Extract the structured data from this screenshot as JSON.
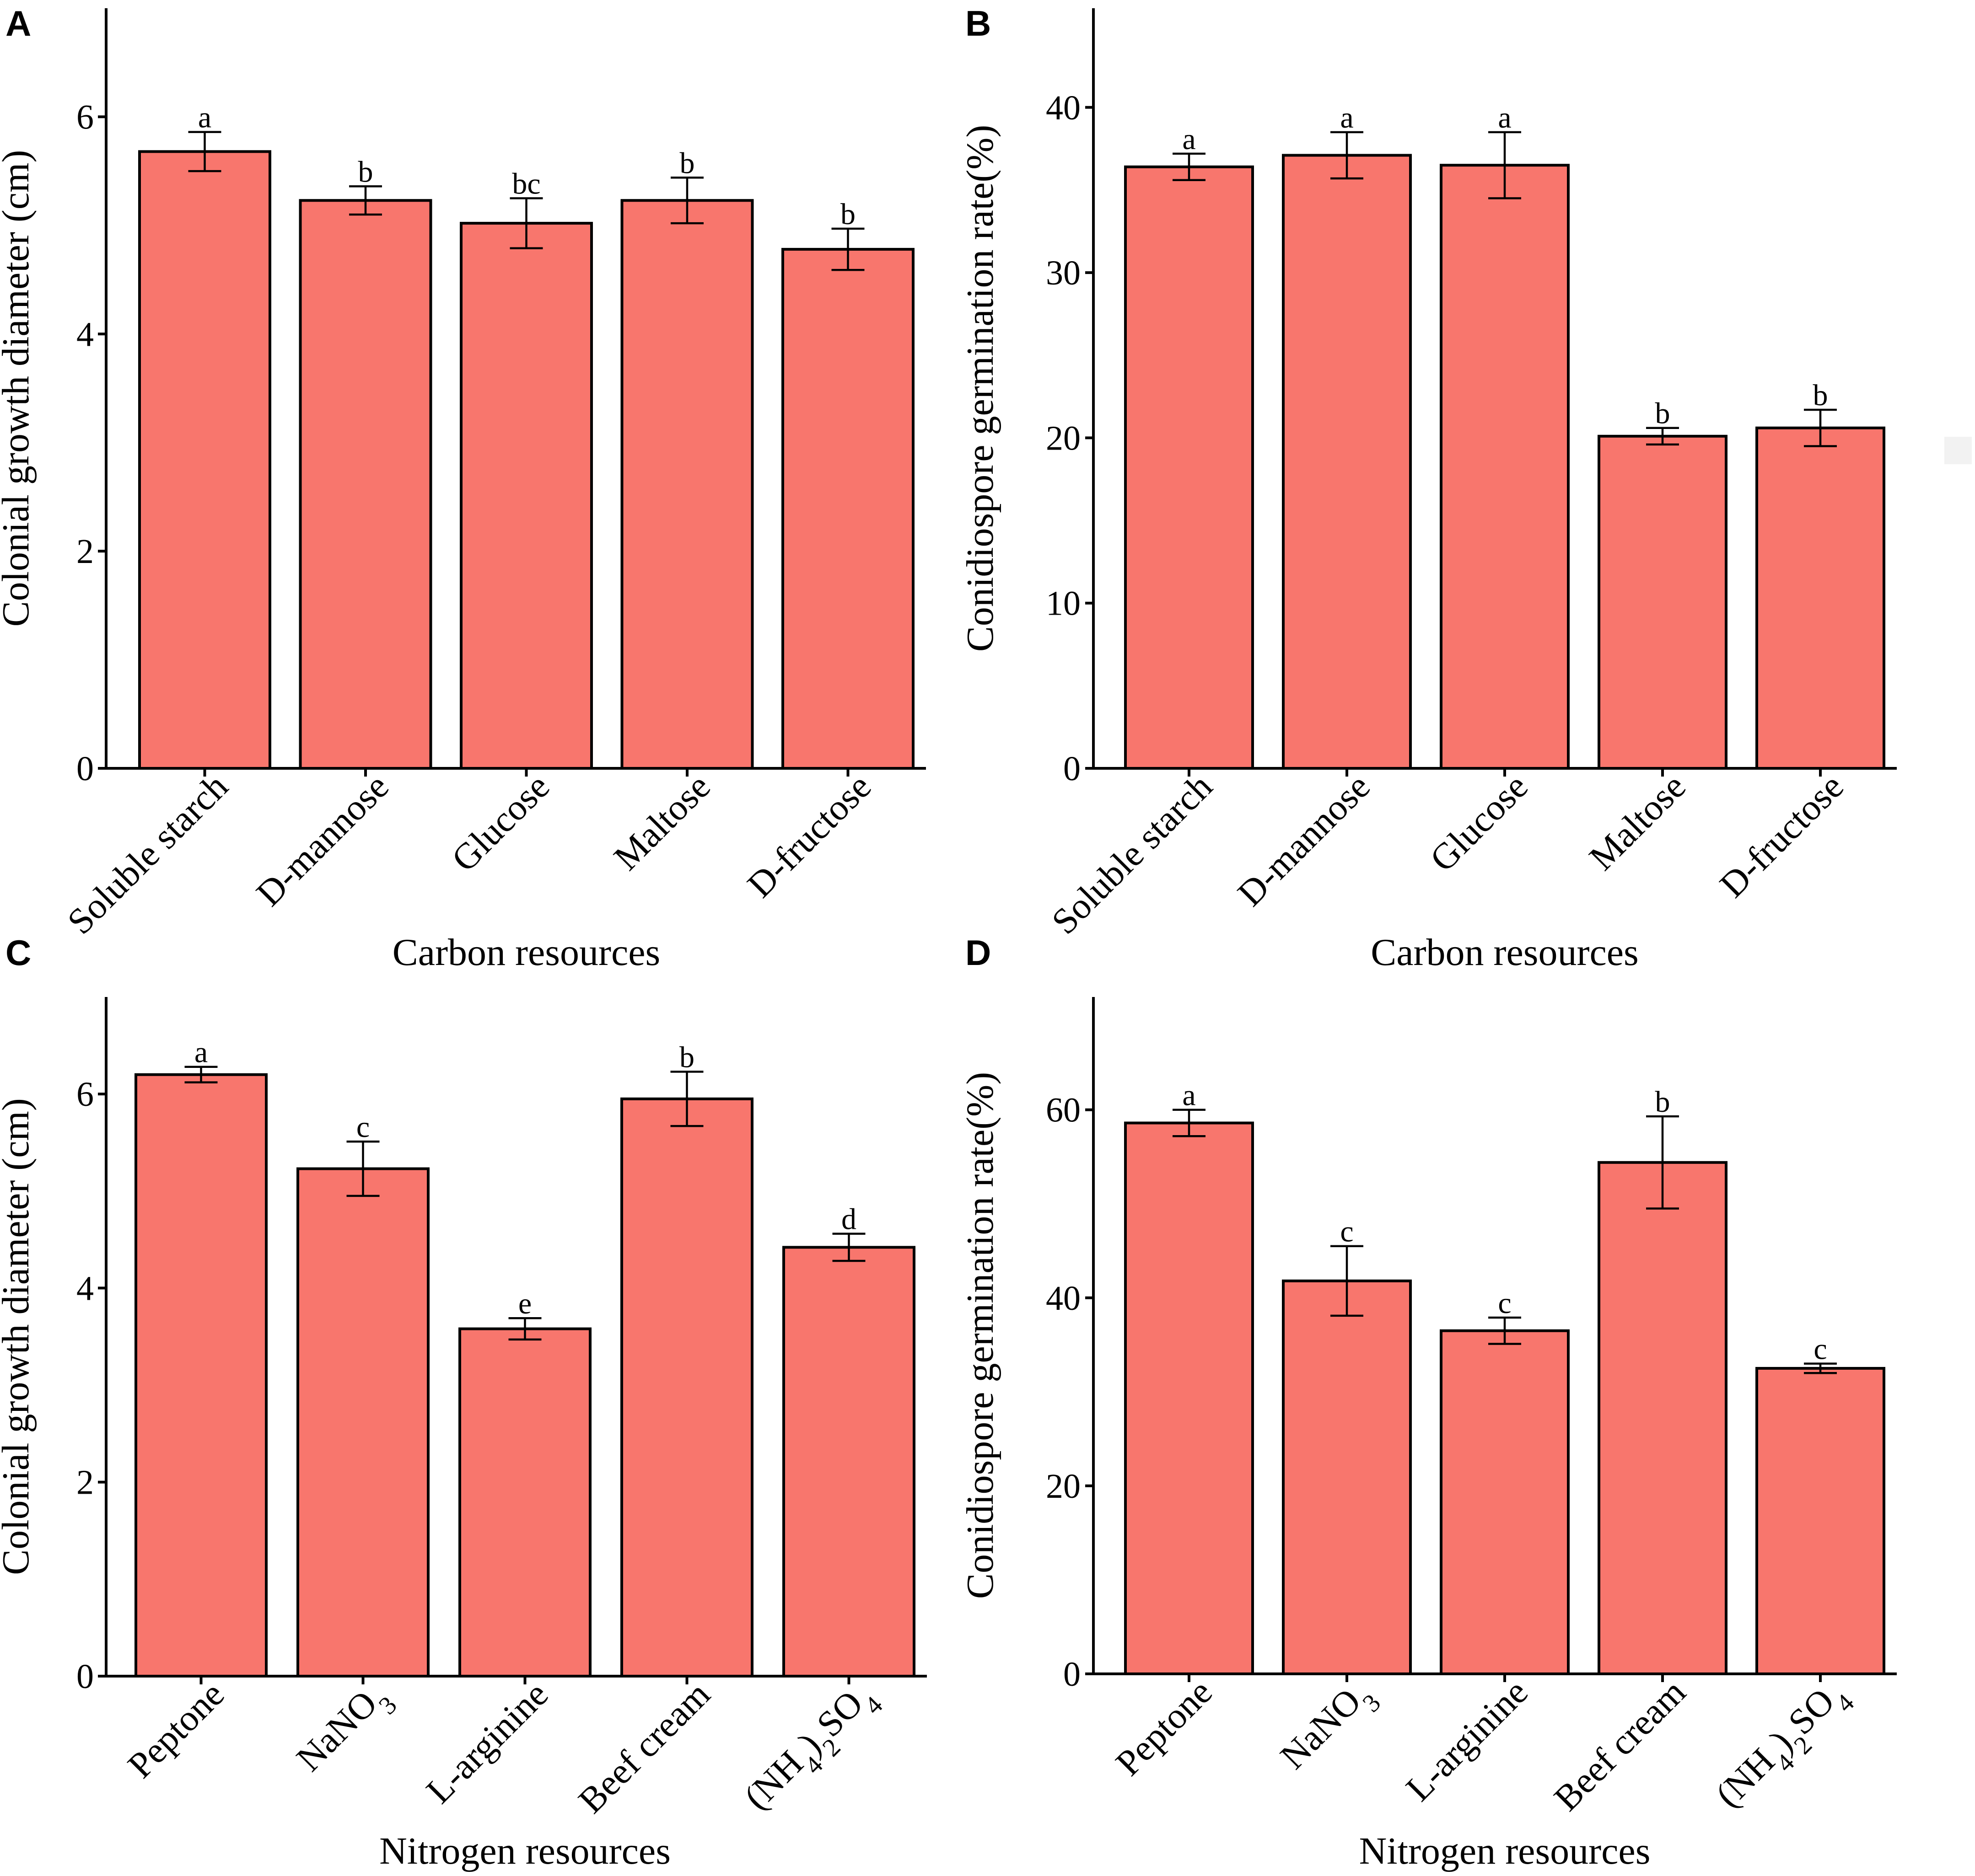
{
  "figure": {
    "bar_color": "#F8766D",
    "border_color": "#000000"
  },
  "chart_data": [
    {
      "type": "bar",
      "panel": "A",
      "title": "",
      "xlabel": "Carbon resources",
      "ylabel": "Colonial growth diameter (cm)",
      "ylim": [
        0,
        7
      ],
      "yticks": [
        0,
        2,
        4,
        6
      ],
      "categories": [
        [
          "Soluble starch"
        ],
        [
          "D-mannose"
        ],
        [
          "Glucose"
        ],
        [
          "Maltose"
        ],
        [
          "D-fructose"
        ]
      ],
      "values": [
        5.68,
        5.23,
        5.02,
        5.23,
        4.78
      ],
      "errors": [
        0.18,
        0.13,
        0.23,
        0.21,
        0.19
      ],
      "letters": [
        "a",
        "b",
        "bc",
        "b",
        "b"
      ]
    },
    {
      "type": "bar",
      "panel": "B",
      "title": "",
      "xlabel": "Carbon resources",
      "ylabel": "Conidiospore germination rate(%)",
      "ylim": [
        0,
        46
      ],
      "yticks": [
        0,
        10,
        20,
        30,
        40
      ],
      "categories": [
        [
          "Soluble starch"
        ],
        [
          "D-mannose"
        ],
        [
          "Glucose"
        ],
        [
          "Maltose"
        ],
        [
          "D-fructose"
        ]
      ],
      "values": [
        36.4,
        37.1,
        36.5,
        20.1,
        20.6
      ],
      "errors": [
        0.8,
        1.4,
        2.0,
        0.5,
        1.1
      ],
      "letters": [
        "a",
        "a",
        "a",
        "b",
        "b"
      ]
    },
    {
      "type": "bar",
      "panel": "C",
      "title": "",
      "xlabel": "Nitrogen resources",
      "ylabel": "Colonial growth diameter (cm)",
      "ylim": [
        0,
        7
      ],
      "yticks": [
        0,
        2,
        4,
        6
      ],
      "categories": [
        [
          "Peptone"
        ],
        [
          "NaNO",
          "3"
        ],
        [
          "L-arginine"
        ],
        [
          "Beef cream"
        ],
        [
          "(NH",
          "4",
          ")",
          "2",
          "SO",
          "4"
        ]
      ],
      "values": [
        6.2,
        5.23,
        3.58,
        5.95,
        4.42
      ],
      "errors": [
        0.08,
        0.28,
        0.11,
        0.28,
        0.14
      ],
      "letters": [
        "a",
        "c",
        "e",
        "b",
        "d"
      ]
    },
    {
      "type": "bar",
      "panel": "D",
      "title": "",
      "xlabel": "Nitrogen resources",
      "ylabel": "Conidiospore germination rate(%)",
      "ylim": [
        0,
        72
      ],
      "yticks": [
        0,
        20,
        40,
        60
      ],
      "categories": [
        [
          "Peptone"
        ],
        [
          "NaNO",
          "3"
        ],
        [
          "L-arginine"
        ],
        [
          "Beef cream"
        ],
        [
          "(NH",
          "4",
          ")",
          "2",
          "SO",
          "4"
        ]
      ],
      "values": [
        58.6,
        41.8,
        36.5,
        54.4,
        32.5
      ],
      "errors": [
        1.4,
        3.7,
        1.4,
        4.9,
        0.5
      ],
      "letters": [
        "a",
        "c",
        "c",
        "b",
        "c"
      ]
    }
  ]
}
